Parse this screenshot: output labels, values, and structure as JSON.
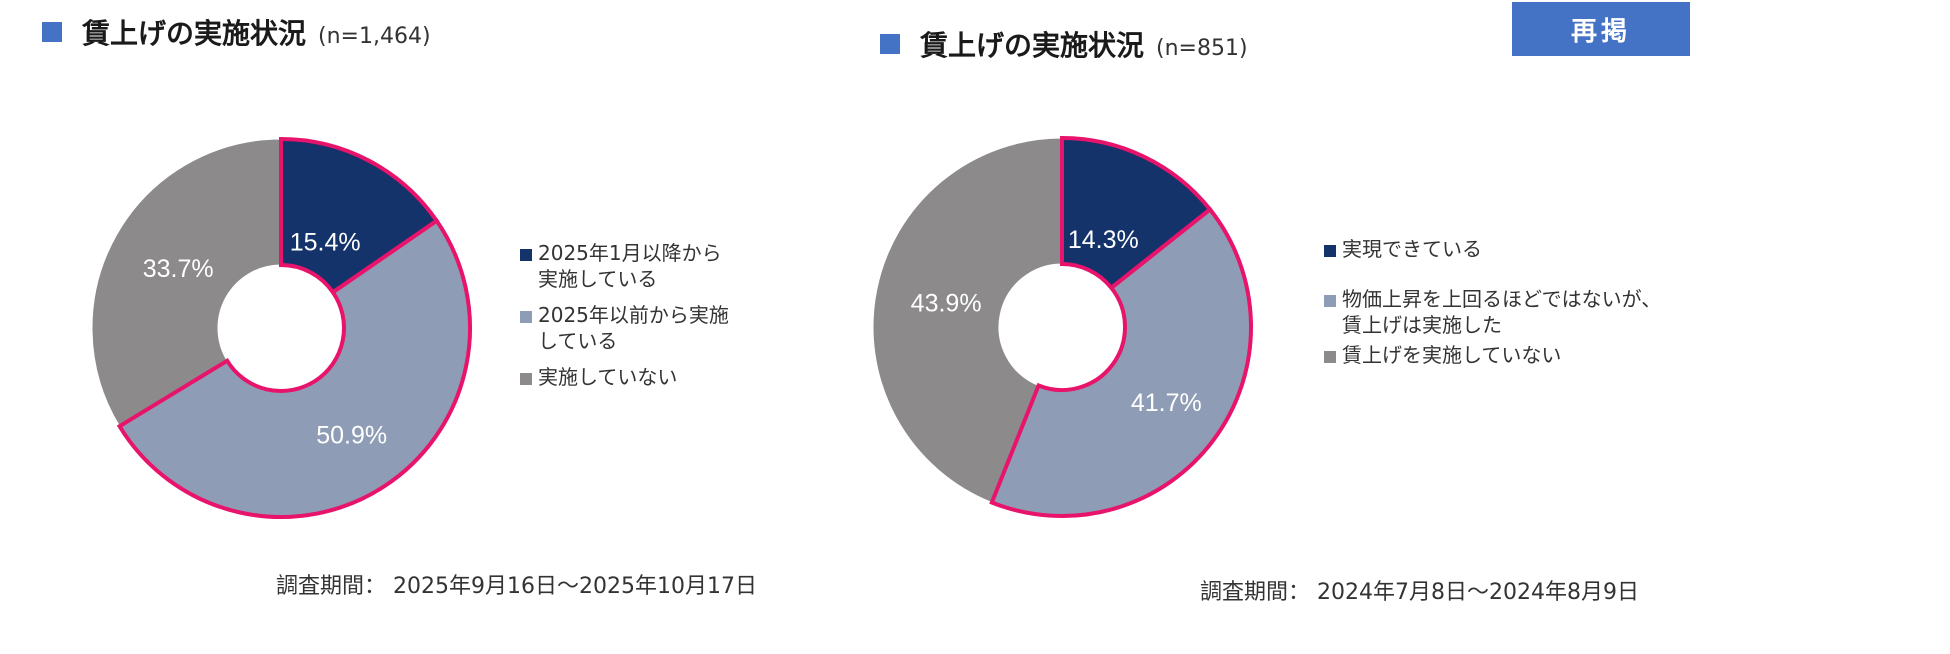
{
  "badge": "再掲",
  "chart_data": [
    {
      "type": "pie",
      "style": "donut",
      "title": "賃上げの実施状況",
      "n_label": "(n=1,464)",
      "categories": [
        "2025年1月以降から実施している",
        "2025年以前から実施している",
        "実施していない"
      ],
      "legend_labels": [
        "2025年1月以降から\n実施している",
        "2025年以前から実施\nしている",
        "実施していない"
      ],
      "values": [
        15.4,
        50.9,
        33.7
      ],
      "data_labels": [
        "15.4%",
        "50.9%",
        "33.7%"
      ],
      "colors": [
        "#14336b",
        "#8e9db5",
        "#8c8a8b"
      ],
      "highlight_color": "#e8136b",
      "legend_position": "right",
      "period": "調査期間：  2025年9月16日～2025年10月17日"
    },
    {
      "type": "pie",
      "style": "donut",
      "title": "賃上げの実施状況",
      "n_label": "(n=851)",
      "categories": [
        "実現できている",
        "物価上昇を上回るほどではないが、賃上げは実施した",
        "賃上げを実施していない"
      ],
      "legend_labels": [
        "実現できている",
        "物価上昇を上回るほどではないが、\n賃上げは実施した",
        "賃上げを実施していない"
      ],
      "values": [
        14.3,
        41.7,
        43.9
      ],
      "data_labels": [
        "14.3%",
        "41.7%",
        "43.9%"
      ],
      "colors": [
        "#14336b",
        "#8e9db5",
        "#8c8a8b"
      ],
      "highlight_color": "#e8136b",
      "legend_position": "right",
      "period": "調査期間：  2024年7月8日～2024年8月9日"
    }
  ]
}
